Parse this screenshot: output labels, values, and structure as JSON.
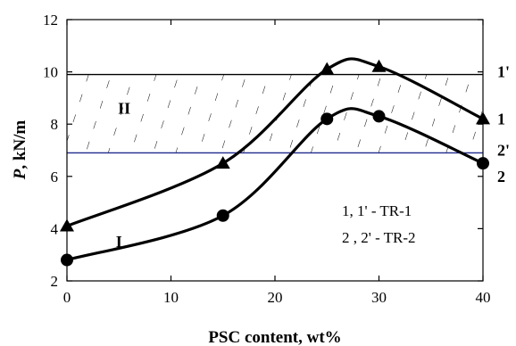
{
  "chart_data": {
    "type": "line",
    "xlabel": "PSC content, wt%",
    "ylabel_italic": "P",
    "ylabel_rest": ",  kN/m",
    "xlim": [
      0,
      40
    ],
    "ylim": [
      2,
      12
    ],
    "xticks": [
      0,
      10,
      20,
      30,
      40
    ],
    "yticks": [
      2,
      4,
      6,
      8,
      10,
      12
    ],
    "grid": false,
    "series": [
      {
        "name": "1",
        "marker": "triangle",
        "points": [
          {
            "x": 0,
            "y": 4.1
          },
          {
            "x": 15,
            "y": 6.5
          },
          {
            "x": 25,
            "y": 10.1
          },
          {
            "x": 30,
            "y": 10.2
          },
          {
            "x": 40,
            "y": 8.2
          }
        ]
      },
      {
        "name": "2",
        "marker": "circle",
        "points": [
          {
            "x": 0,
            "y": 2.8
          },
          {
            "x": 15,
            "y": 4.5
          },
          {
            "x": 25,
            "y": 8.2
          },
          {
            "x": 30,
            "y": 8.3
          },
          {
            "x": 40,
            "y": 6.5
          }
        ]
      }
    ],
    "reference_lines": [
      {
        "name": "1'",
        "y": 9.9,
        "color": "#000000"
      },
      {
        "name": "2'",
        "y": 6.9,
        "color": "#1f2a8c"
      }
    ],
    "hatched_region": {
      "y_from": 6.9,
      "y_to": 9.9
    },
    "region_labels": [
      {
        "text": "II",
        "x": 5.5,
        "y": 8.4
      },
      {
        "text": "I",
        "x": 5.0,
        "y": 3.3
      }
    ],
    "right_labels": [
      {
        "text": "1'",
        "y": 10.0
      },
      {
        "text": "1",
        "y": 8.2
      },
      {
        "text": "2'",
        "y": 7.0
      },
      {
        "text": "2",
        "y": 6.0
      }
    ],
    "legend_lines": [
      "1, 1' - TR-1",
      "2 , 2' - TR-2"
    ]
  }
}
